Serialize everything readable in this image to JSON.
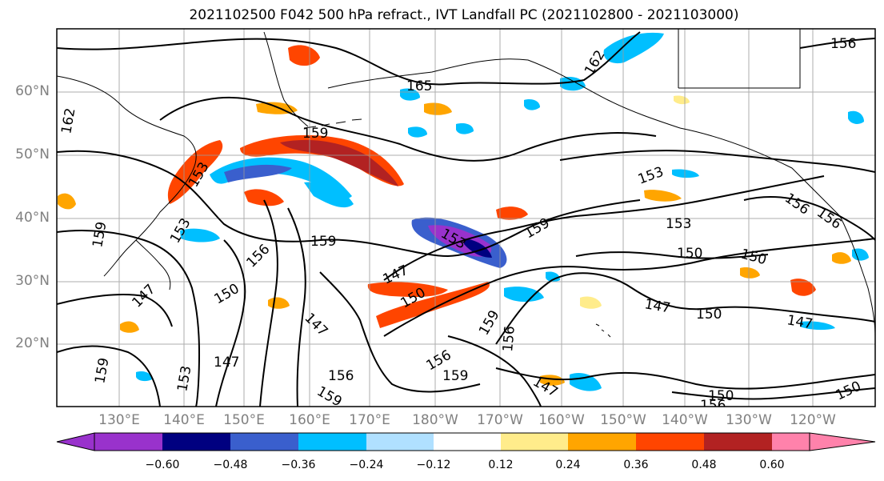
{
  "title": "2021102500 F042 500 hPa refract., IVT Landfall PC (2021102800 - 2021103000)",
  "lat_labels": [
    "60°N",
    "50°N",
    "40°N",
    "30°N",
    "20°N"
  ],
  "lon_labels": [
    "130°E",
    "140°E",
    "150°E",
    "160°E",
    "170°E",
    "180°W",
    "170°W",
    "160°W",
    "150°W",
    "140°W",
    "130°W",
    "120°W"
  ],
  "colorbar": {
    "ticks": [
      "−0.60",
      "−0.48",
      "−0.36",
      "−0.24",
      "−0.12",
      "0.12",
      "0.24",
      "0.36",
      "0.48",
      "0.60"
    ],
    "colors": [
      "#9932cc",
      "#000080",
      "#3a5fcd",
      "#00bfff",
      "#b0e0ff",
      "#ffffff",
      "#ffec8b",
      "#ffa500",
      "#ff4500",
      "#b22222",
      "#ff82ab"
    ]
  },
  "contour_labels": [
    "165",
    "162",
    "162",
    "159",
    "159",
    "159",
    "159",
    "159",
    "156",
    "156",
    "156",
    "156",
    "156",
    "156",
    "156",
    "153",
    "153",
    "153",
    "153",
    "153",
    "150",
    "150",
    "150",
    "150",
    "150",
    "150",
    "150",
    "147",
    "147",
    "147",
    "147",
    "147",
    "147",
    "147",
    "159",
    "159",
    "153",
    "159",
    "156"
  ]
}
